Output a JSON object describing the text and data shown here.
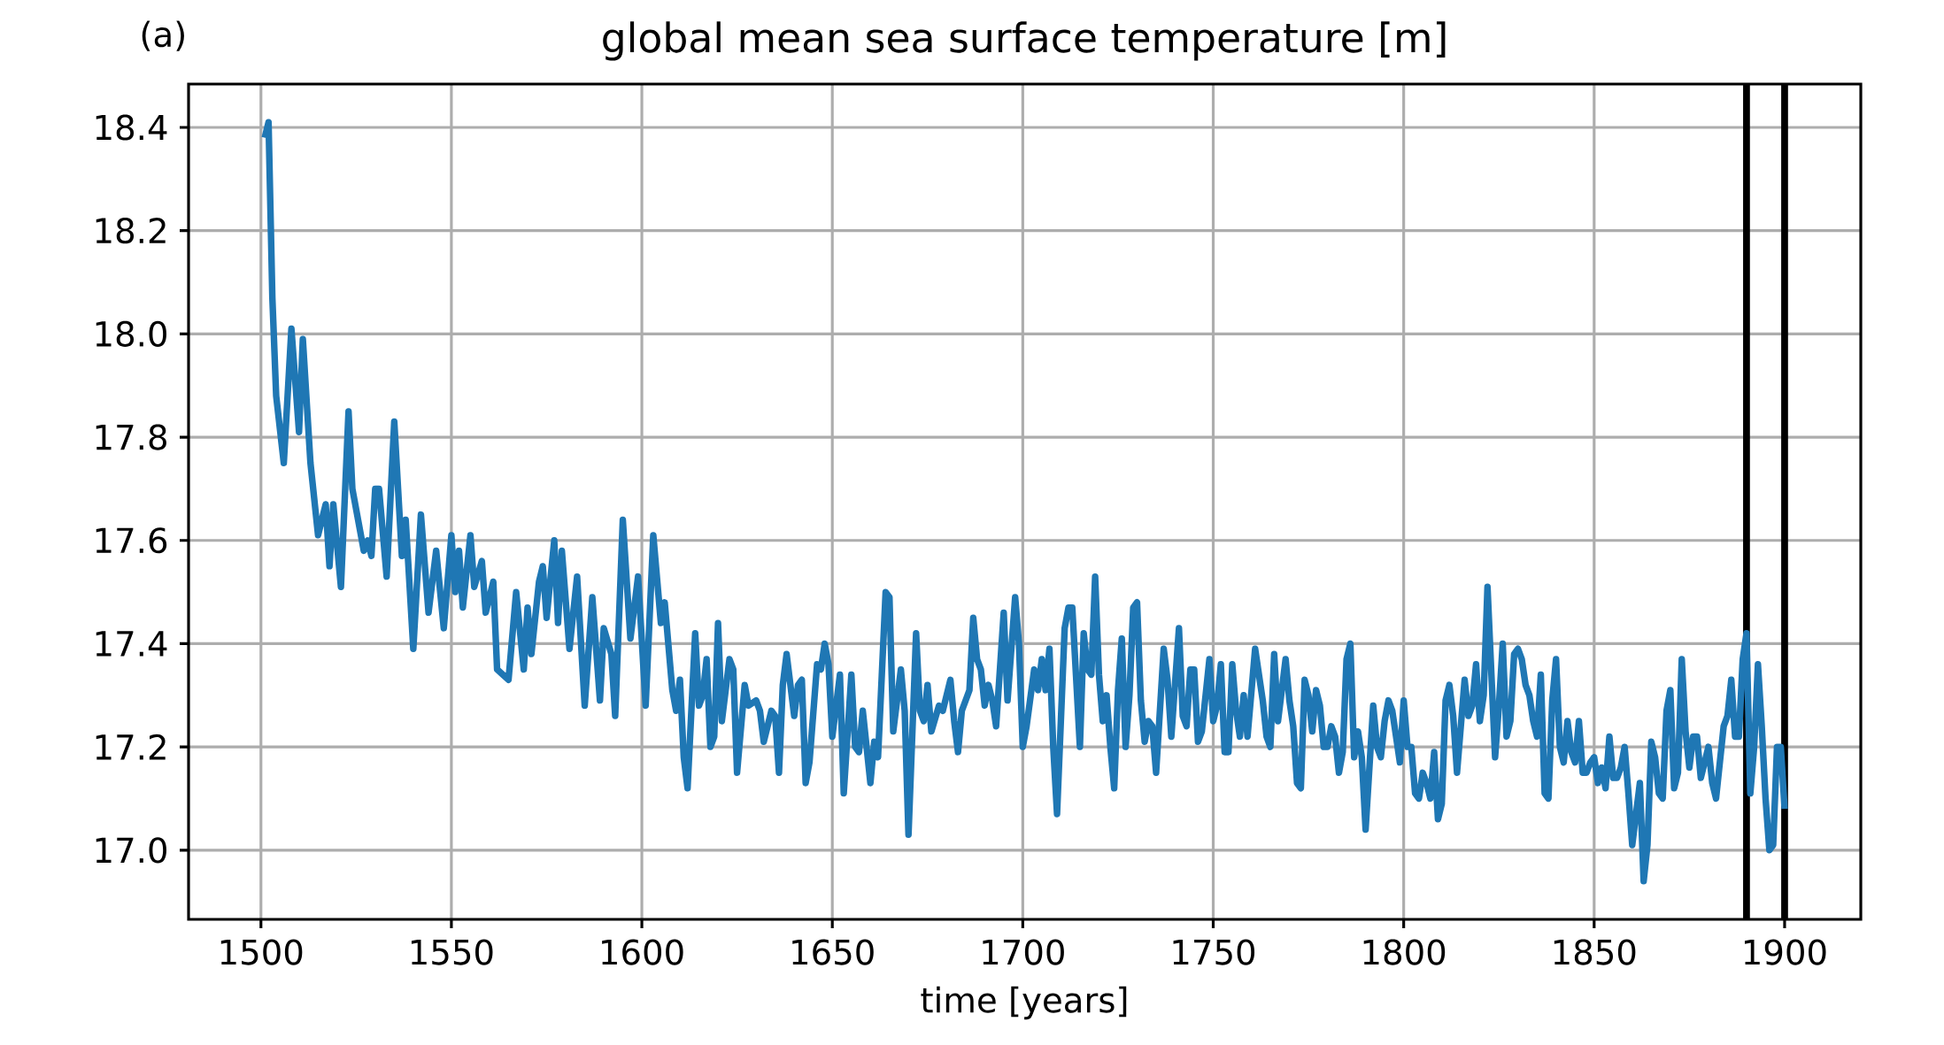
{
  "chart_data": {
    "type": "line",
    "title": "global mean sea surface temperature [m]",
    "xlabel": "time [years]",
    "annotations": [
      "(a)"
    ],
    "xlim": [
      1481,
      1920
    ],
    "ylim": [
      16.866,
      18.484
    ],
    "xticks": [
      1500,
      1550,
      1600,
      1650,
      1700,
      1750,
      1800,
      1850,
      1900
    ],
    "yticks": [
      {
        "value": 17.0,
        "label": "17.0"
      },
      {
        "value": 17.2,
        "label": "17.2"
      },
      {
        "value": 17.4,
        "label": "17.4"
      },
      {
        "value": 17.6,
        "label": "17.6"
      },
      {
        "value": 17.8,
        "label": "17.8"
      },
      {
        "value": 18.0,
        "label": "18.0"
      },
      {
        "value": 18.2,
        "label": "18.2"
      },
      {
        "value": 18.4,
        "label": "18.4"
      }
    ],
    "grid": true,
    "line_style": "solid",
    "ref_lines": [
      {
        "axis": "x",
        "value": 1890,
        "color": "#000000"
      },
      {
        "axis": "x",
        "value": 1900,
        "color": "#000000"
      }
    ],
    "series": [
      {
        "color": "#1f77b4",
        "x": [
          1501,
          1502,
          1503,
          1504,
          1506,
          1508,
          1510,
          1511,
          1513,
          1515,
          1517,
          1518,
          1519,
          1521,
          1523,
          1524,
          1527,
          1528,
          1529,
          1530,
          1531,
          1533,
          1535,
          1537,
          1538,
          1540,
          1542,
          1544,
          1546,
          1548,
          1550,
          1551,
          1552,
          1553,
          1555,
          1556,
          1558,
          1559,
          1561,
          1562,
          1565,
          1567,
          1569,
          1570,
          1571,
          1573,
          1574,
          1575,
          1577,
          1578,
          1579,
          1581,
          1583,
          1585,
          1587,
          1589,
          1590,
          1592,
          1593,
          1595,
          1597,
          1599,
          1601,
          1603,
          1605,
          1606,
          1608,
          1609,
          1610,
          1611,
          1612,
          1614,
          1615,
          1616,
          1617,
          1618,
          1619,
          1620,
          1621,
          1623,
          1624,
          1625,
          1627,
          1628,
          1630,
          1631,
          1632,
          1634,
          1635,
          1636,
          1637,
          1638,
          1640,
          1641,
          1642,
          1643,
          1644,
          1646,
          1647,
          1648,
          1649,
          1650,
          1652,
          1653,
          1655,
          1656,
          1657,
          1658,
          1660,
          1661,
          1662,
          1664,
          1665,
          1666,
          1668,
          1669,
          1670,
          1672,
          1673,
          1674,
          1675,
          1676,
          1678,
          1679,
          1681,
          1682,
          1683,
          1684,
          1686,
          1687,
          1688,
          1689,
          1690,
          1691,
          1692,
          1693,
          1695,
          1696,
          1698,
          1699,
          1700,
          1701,
          1703,
          1704,
          1705,
          1706,
          1707,
          1708,
          1709,
          1711,
          1712,
          1713,
          1715,
          1716,
          1717,
          1718,
          1719,
          1720,
          1721,
          1722,
          1723,
          1724,
          1725,
          1726,
          1727,
          1728,
          1729,
          1730,
          1731,
          1732,
          1733,
          1734,
          1735,
          1737,
          1738,
          1739,
          1741,
          1742,
          1743,
          1744,
          1745,
          1746,
          1747,
          1749,
          1750,
          1751,
          1752,
          1753,
          1754,
          1755,
          1756,
          1757,
          1758,
          1759,
          1761,
          1763,
          1764,
          1765,
          1766,
          1767,
          1769,
          1770,
          1771,
          1772,
          1773,
          1774,
          1775,
          1776,
          1777,
          1778,
          1779,
          1780,
          1781,
          1782,
          1783,
          1784,
          1785,
          1786,
          1787,
          1788,
          1789,
          1790,
          1792,
          1793,
          1794,
          1795,
          1796,
          1797,
          1798,
          1799,
          1800,
          1801,
          1802,
          1803,
          1804,
          1805,
          1806,
          1807,
          1808,
          1809,
          1810,
          1811,
          1812,
          1813,
          1814,
          1816,
          1817,
          1818,
          1819,
          1820,
          1821,
          1822,
          1824,
          1825,
          1826,
          1827,
          1828,
          1829,
          1830,
          1831,
          1832,
          1833,
          1834,
          1835,
          1836,
          1837,
          1838,
          1839,
          1840,
          1841,
          1842,
          1843,
          1844,
          1845,
          1846,
          1847,
          1848,
          1849,
          1850,
          1851,
          1852,
          1853,
          1854,
          1855,
          1856,
          1857,
          1858,
          1859,
          1860,
          1862,
          1863,
          1864,
          1865,
          1866,
          1867,
          1868,
          1869,
          1870,
          1871,
          1872,
          1873,
          1874,
          1875,
          1876,
          1877,
          1878,
          1879,
          1880,
          1881,
          1882,
          1883,
          1884,
          1885,
          1886,
          1887,
          1888,
          1889,
          1890,
          1891,
          1892,
          1893,
          1894,
          1895,
          1896,
          1897,
          1898,
          1899,
          1900
        ],
        "values": [
          18.38,
          18.41,
          18.07,
          17.88,
          17.75,
          18.01,
          17.81,
          17.99,
          17.75,
          17.61,
          17.67,
          17.55,
          17.67,
          17.51,
          17.85,
          17.7,
          17.58,
          17.6,
          17.57,
          17.7,
          17.7,
          17.53,
          17.83,
          17.57,
          17.64,
          17.39,
          17.65,
          17.46,
          17.58,
          17.43,
          17.61,
          17.5,
          17.58,
          17.47,
          17.61,
          17.51,
          17.56,
          17.46,
          17.52,
          17.35,
          17.33,
          17.5,
          17.35,
          17.47,
          17.38,
          17.52,
          17.55,
          17.45,
          17.6,
          17.44,
          17.58,
          17.39,
          17.53,
          17.28,
          17.49,
          17.29,
          17.43,
          17.38,
          17.26,
          17.64,
          17.41,
          17.53,
          17.28,
          17.61,
          17.44,
          17.48,
          17.31,
          17.27,
          17.33,
          17.18,
          17.12,
          17.42,
          17.28,
          17.3,
          17.37,
          17.2,
          17.22,
          17.44,
          17.25,
          17.37,
          17.35,
          17.15,
          17.32,
          17.28,
          17.29,
          17.27,
          17.21,
          17.27,
          17.26,
          17.15,
          17.32,
          17.38,
          17.26,
          17.32,
          17.33,
          17.13,
          17.17,
          17.36,
          17.35,
          17.4,
          17.36,
          17.22,
          17.34,
          17.11,
          17.34,
          17.2,
          17.19,
          17.27,
          17.13,
          17.21,
          17.18,
          17.5,
          17.49,
          17.23,
          17.35,
          17.27,
          17.03,
          17.42,
          17.27,
          17.25,
          17.32,
          17.23,
          17.28,
          17.27,
          17.33,
          17.25,
          17.19,
          17.27,
          17.31,
          17.45,
          17.37,
          17.35,
          17.28,
          17.32,
          17.29,
          17.24,
          17.46,
          17.29,
          17.49,
          17.4,
          17.2,
          17.24,
          17.35,
          17.31,
          17.37,
          17.31,
          17.39,
          17.2,
          17.07,
          17.43,
          17.47,
          17.47,
          17.2,
          17.42,
          17.35,
          17.34,
          17.53,
          17.34,
          17.25,
          17.3,
          17.2,
          17.12,
          17.31,
          17.41,
          17.2,
          17.3,
          17.47,
          17.48,
          17.29,
          17.21,
          17.25,
          17.24,
          17.15,
          17.39,
          17.33,
          17.22,
          17.43,
          17.26,
          17.24,
          17.35,
          17.35,
          17.21,
          17.23,
          17.37,
          17.25,
          17.28,
          17.36,
          17.19,
          17.19,
          17.36,
          17.27,
          17.22,
          17.3,
          17.22,
          17.39,
          17.29,
          17.22,
          17.2,
          17.38,
          17.25,
          17.37,
          17.29,
          17.24,
          17.13,
          17.12,
          17.33,
          17.3,
          17.23,
          17.31,
          17.28,
          17.2,
          17.2,
          17.24,
          17.22,
          17.15,
          17.19,
          17.37,
          17.4,
          17.18,
          17.23,
          17.18,
          17.04,
          17.28,
          17.2,
          17.18,
          17.25,
          17.29,
          17.27,
          17.22,
          17.17,
          17.29,
          17.2,
          17.2,
          17.11,
          17.1,
          17.15,
          17.13,
          17.1,
          17.19,
          17.06,
          17.09,
          17.29,
          17.32,
          17.26,
          17.15,
          17.33,
          17.26,
          17.28,
          17.36,
          17.25,
          17.3,
          17.51,
          17.18,
          17.28,
          17.4,
          17.22,
          17.25,
          17.38,
          17.39,
          17.37,
          17.32,
          17.3,
          17.25,
          17.22,
          17.34,
          17.11,
          17.1,
          17.29,
          17.37,
          17.2,
          17.17,
          17.25,
          17.19,
          17.17,
          17.25,
          17.15,
          17.15,
          17.17,
          17.18,
          17.13,
          17.16,
          17.12,
          17.22,
          17.14,
          17.14,
          17.16,
          17.2,
          17.11,
          17.01,
          17.13,
          16.94,
          17.01,
          17.21,
          17.18,
          17.11,
          17.1,
          17.27,
          17.31,
          17.12,
          17.15,
          17.37,
          17.23,
          17.16,
          17.22,
          17.22,
          17.14,
          17.17,
          17.2,
          17.13,
          17.1,
          17.17,
          17.24,
          17.26,
          17.33,
          17.22,
          17.22,
          17.37,
          17.42,
          17.11,
          17.2,
          17.36,
          17.24,
          17.1,
          17.0,
          17.01,
          17.2,
          17.2,
          17.08
        ]
      }
    ]
  }
}
